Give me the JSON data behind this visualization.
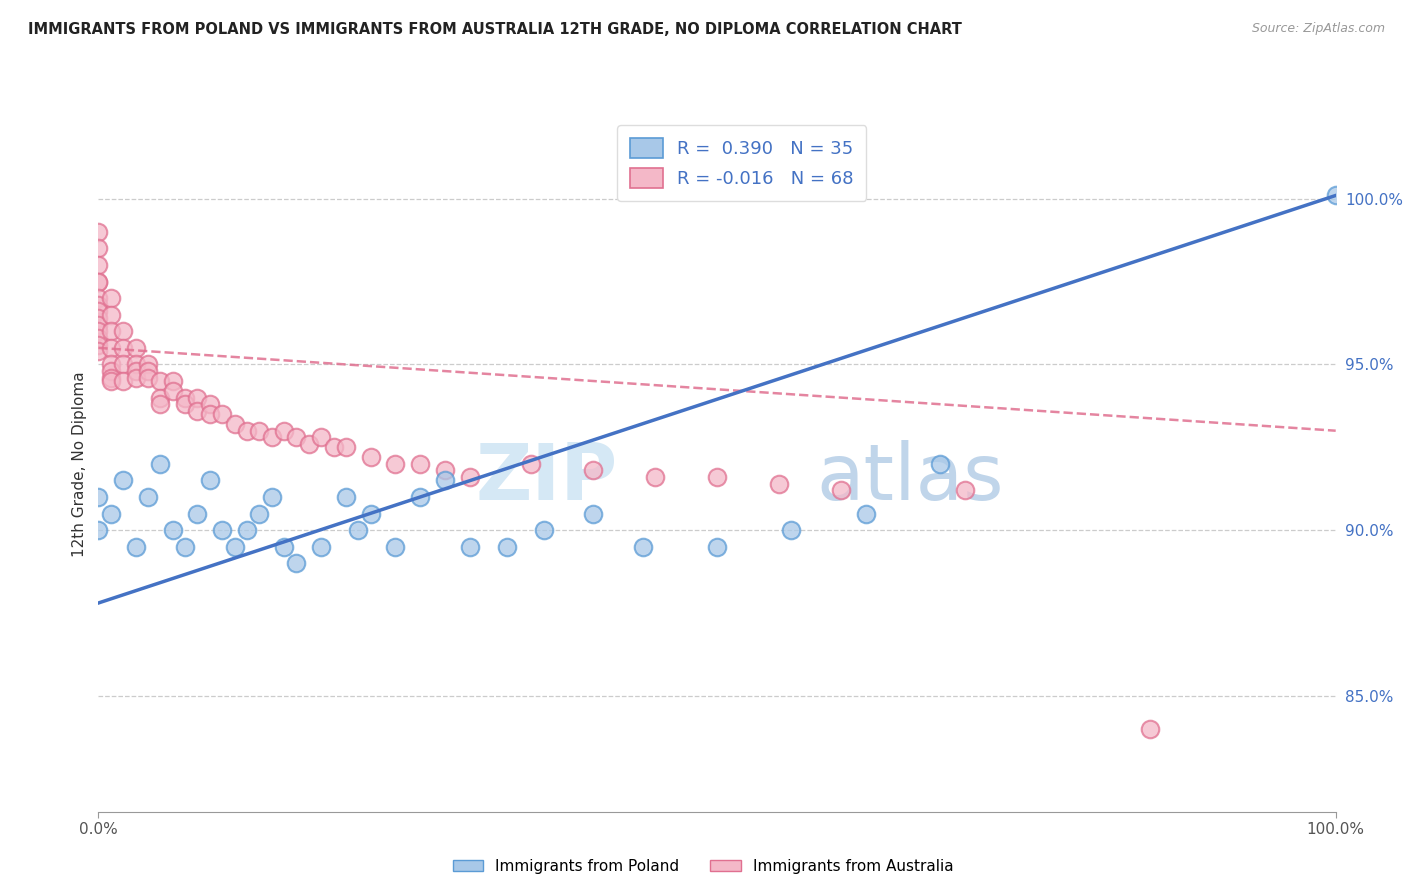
{
  "title": "IMMIGRANTS FROM POLAND VS IMMIGRANTS FROM AUSTRALIA 12TH GRADE, NO DIPLOMA CORRELATION CHART",
  "source": "Source: ZipAtlas.com",
  "ylabel": "12th Grade, No Diploma",
  "xlim": [
    0.0,
    1.0
  ],
  "ylim": [
    0.815,
    1.025
  ],
  "y_tick_values_right": [
    0.85,
    0.9,
    0.95,
    1.0
  ],
  "poland_color": "#a8c8e8",
  "poland_edge_color": "#5b9bd5",
  "australia_color": "#f4b8c8",
  "australia_edge_color": "#e07090",
  "poland_line_color": "#4472c4",
  "australia_line_color": "#e07090",
  "poland_scatter_x": [
    0.0,
    0.0,
    0.01,
    0.02,
    0.03,
    0.04,
    0.05,
    0.06,
    0.07,
    0.08,
    0.09,
    0.1,
    0.11,
    0.12,
    0.13,
    0.14,
    0.15,
    0.16,
    0.18,
    0.2,
    0.21,
    0.22,
    0.24,
    0.26,
    0.28,
    0.3,
    0.33,
    0.36,
    0.4,
    0.44,
    0.5,
    0.56,
    0.62,
    0.68,
    1.0
  ],
  "poland_scatter_y": [
    0.91,
    0.9,
    0.905,
    0.915,
    0.895,
    0.91,
    0.92,
    0.9,
    0.895,
    0.905,
    0.915,
    0.9,
    0.895,
    0.9,
    0.905,
    0.91,
    0.895,
    0.89,
    0.895,
    0.91,
    0.9,
    0.905,
    0.895,
    0.91,
    0.915,
    0.895,
    0.895,
    0.9,
    0.905,
    0.895,
    0.895,
    0.9,
    0.905,
    0.92,
    1.001
  ],
  "australia_scatter_x": [
    0.0,
    0.0,
    0.0,
    0.0,
    0.0,
    0.0,
    0.0,
    0.0,
    0.0,
    0.0,
    0.0,
    0.0,
    0.0,
    0.0,
    0.01,
    0.01,
    0.01,
    0.01,
    0.01,
    0.01,
    0.01,
    0.01,
    0.02,
    0.02,
    0.02,
    0.02,
    0.03,
    0.03,
    0.03,
    0.03,
    0.04,
    0.04,
    0.04,
    0.05,
    0.05,
    0.05,
    0.06,
    0.06,
    0.07,
    0.07,
    0.08,
    0.08,
    0.09,
    0.09,
    0.1,
    0.11,
    0.12,
    0.13,
    0.14,
    0.15,
    0.16,
    0.17,
    0.18,
    0.19,
    0.2,
    0.22,
    0.24,
    0.26,
    0.28,
    0.3,
    0.35,
    0.4,
    0.45,
    0.5,
    0.55,
    0.6,
    0.7,
    0.85
  ],
  "australia_scatter_y": [
    0.99,
    0.985,
    0.98,
    0.975,
    0.975,
    0.97,
    0.968,
    0.966,
    0.964,
    0.962,
    0.96,
    0.958,
    0.956,
    0.954,
    0.97,
    0.965,
    0.96,
    0.955,
    0.95,
    0.948,
    0.946,
    0.945,
    0.96,
    0.955,
    0.95,
    0.945,
    0.955,
    0.95,
    0.948,
    0.946,
    0.95,
    0.948,
    0.946,
    0.945,
    0.94,
    0.938,
    0.945,
    0.942,
    0.94,
    0.938,
    0.94,
    0.936,
    0.938,
    0.935,
    0.935,
    0.932,
    0.93,
    0.93,
    0.928,
    0.93,
    0.928,
    0.926,
    0.928,
    0.925,
    0.925,
    0.922,
    0.92,
    0.92,
    0.918,
    0.916,
    0.92,
    0.918,
    0.916,
    0.916,
    0.914,
    0.912,
    0.912,
    0.84
  ],
  "poland_line_x": [
    0.0,
    1.0
  ],
  "poland_line_y": [
    0.878,
    1.001
  ],
  "australia_line_x": [
    0.0,
    1.0
  ],
  "australia_line_y": [
    0.955,
    0.93
  ]
}
